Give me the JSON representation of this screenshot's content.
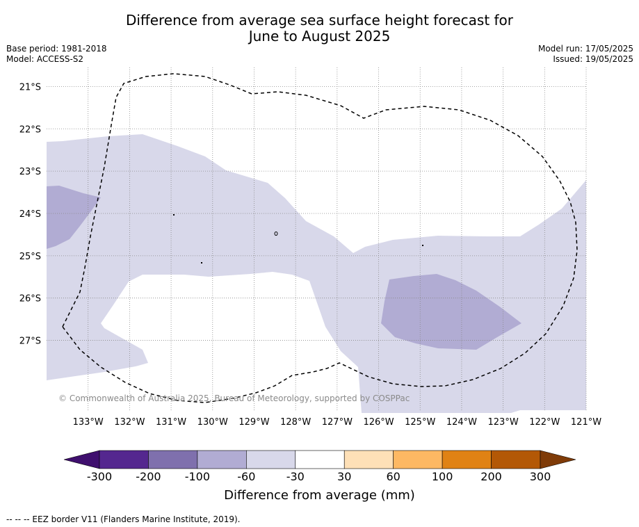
{
  "title": {
    "line1": "Difference from average sea surface height forecast for",
    "line2": "June to August 2025"
  },
  "meta_left": {
    "base_period": "Base period: 1981-2018",
    "model": "Model: ACCESS-S2"
  },
  "meta_right": {
    "model_run": "Model run: 17/05/2025",
    "issued": "Issued: 19/05/2025"
  },
  "map": {
    "lon_range": [
      -134.0,
      -121.0
    ],
    "lat_range": [
      -28.65,
      -20.55
    ],
    "lat_ticks": [
      "21°S",
      "22°S",
      "23°S",
      "24°S",
      "25°S",
      "26°S",
      "27°S"
    ],
    "lat_tick_values": [
      -21,
      -22,
      -23,
      -24,
      -25,
      -26,
      -27
    ],
    "lon_ticks": [
      "133°W",
      "132°W",
      "131°W",
      "130°W",
      "129°W",
      "128°W",
      "127°W",
      "126°W",
      "125°W",
      "124°W",
      "123°W",
      "122°W",
      "121°W"
    ],
    "lon_tick_values": [
      -133,
      -132,
      -131,
      -130,
      -129,
      -128,
      -127,
      -126,
      -125,
      -124,
      -123,
      -122,
      -121
    ],
    "gridlines": true,
    "attribution": "© Commonwealth of Australia 2025, Bureau of Meteorology, supported by COSPPac",
    "colors": {
      "light_lavender_-60_-30": "#d8d8ea",
      "lavender_-100_-60": "#b1acd3",
      "eez_border": "#000000"
    }
  },
  "colorbar": {
    "title": "Difference from average (mm)",
    "tick_labels": [
      "-300",
      "-200",
      "-100",
      "-60",
      "-30",
      "30",
      "60",
      "100",
      "200",
      "300"
    ],
    "colors": [
      "#3f0f6e",
      "#54278f",
      "#7f70ad",
      "#b1acd3",
      "#d8d8ea",
      "#ffffff",
      "#fee0b7",
      "#fdb863",
      "#e08214",
      "#b35806",
      "#7f3b08"
    ]
  },
  "footnote": "--  --  -- EEZ border V11 (Flanders Marine Institute, 2019)."
}
